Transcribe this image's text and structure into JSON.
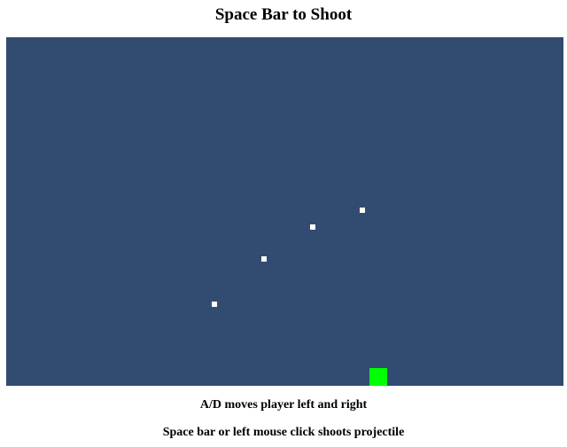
{
  "title": "Space Bar to Shoot",
  "instructions": [
    "A/D moves player left and right",
    "Space bar or left mouse click shoots projectile"
  ],
  "colors": {
    "canvas_background": "#324b70",
    "projectile": "#ffffff",
    "player": "#00ff00"
  },
  "game": {
    "player_icon": "green-square",
    "projectile_icon": "white-square",
    "projectile_count": 4
  }
}
